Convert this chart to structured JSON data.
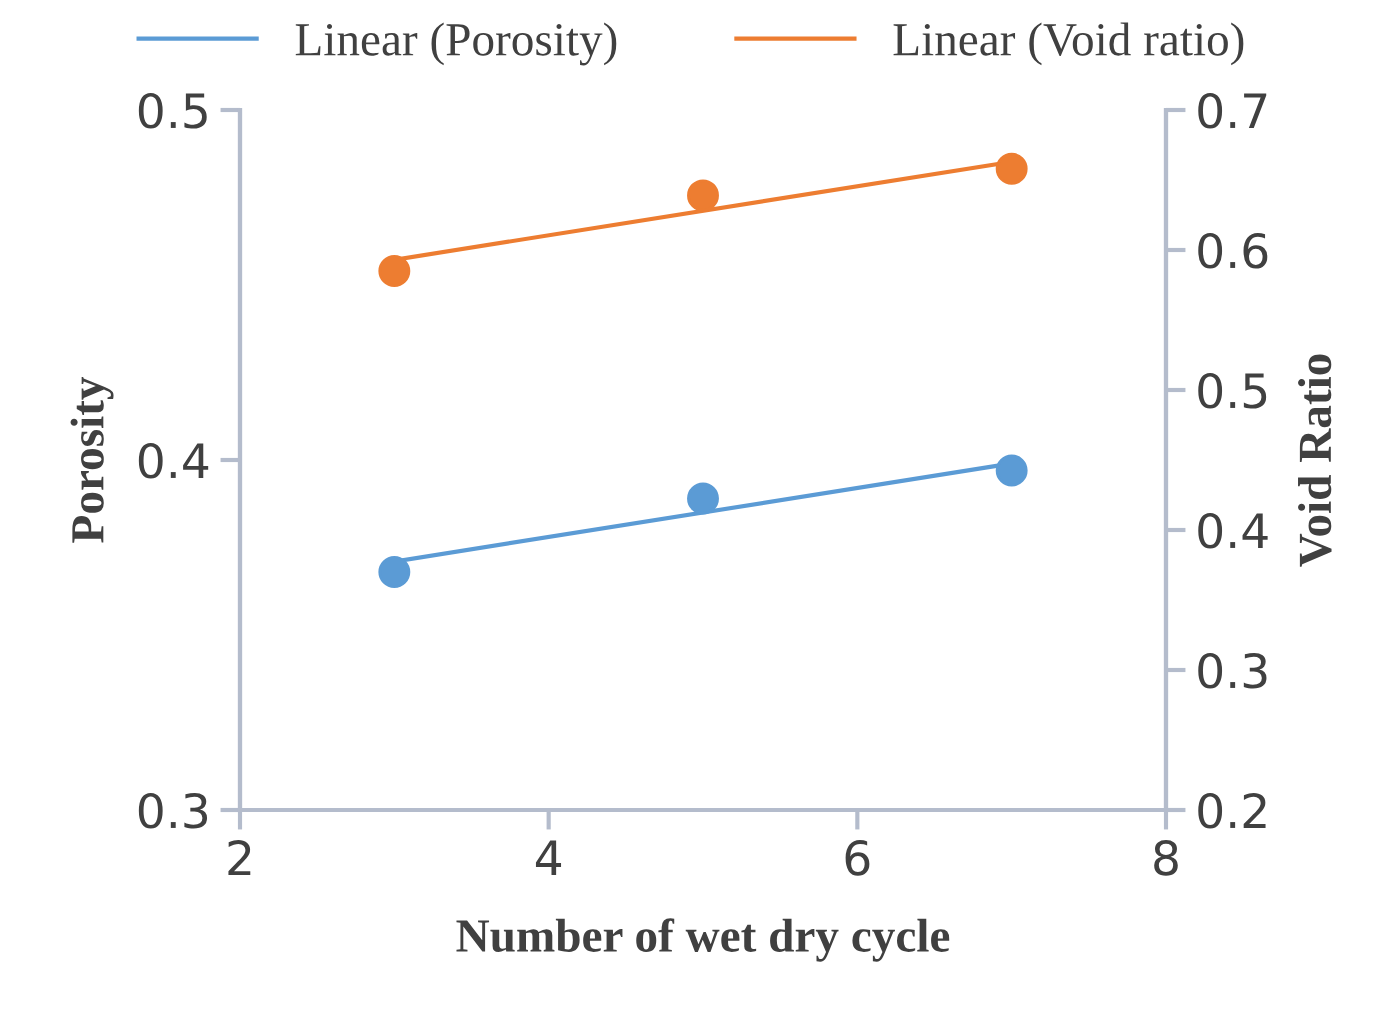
{
  "chart_data": {
    "type": "scatter",
    "xlabel": "Number of wet dry cycle",
    "ylabel": "Porosity",
    "y2label": "Void Ratio",
    "xlim": [
      2,
      8
    ],
    "xticks": [
      2,
      4,
      6,
      8
    ],
    "ylim": [
      0.3,
      0.5
    ],
    "yticks": [
      0.3,
      0.4,
      0.5
    ],
    "y2lim": [
      0.2,
      0.7
    ],
    "y2ticks": [
      0.2,
      0.3,
      0.4,
      0.5,
      0.6,
      0.7
    ],
    "grid": false,
    "legend": "top",
    "marker": "circle",
    "series": [
      {
        "color": "#5b9bd5",
        "x": [
          3,
          5,
          7
        ],
        "values": [
          0.368,
          0.389,
          0.397
        ]
      },
      {
        "axis": "y2",
        "color": "#ed7d31",
        "x": [
          3,
          5,
          7
        ],
        "values": [
          0.585,
          0.639,
          0.658
        ]
      },
      {
        "type": "line",
        "name": "Linear (Porosity)",
        "color": "#5b9bd5",
        "x": [
          3,
          7
        ],
        "values": [
          0.371,
          0.399
        ],
        "marker": "none"
      },
      {
        "type": "line",
        "name": "Linear (Void ratio)",
        "axis": "y2",
        "color": "#ed7d31",
        "x": [
          3,
          7
        ],
        "values": [
          0.593,
          0.663
        ],
        "marker": "none"
      }
    ]
  }
}
